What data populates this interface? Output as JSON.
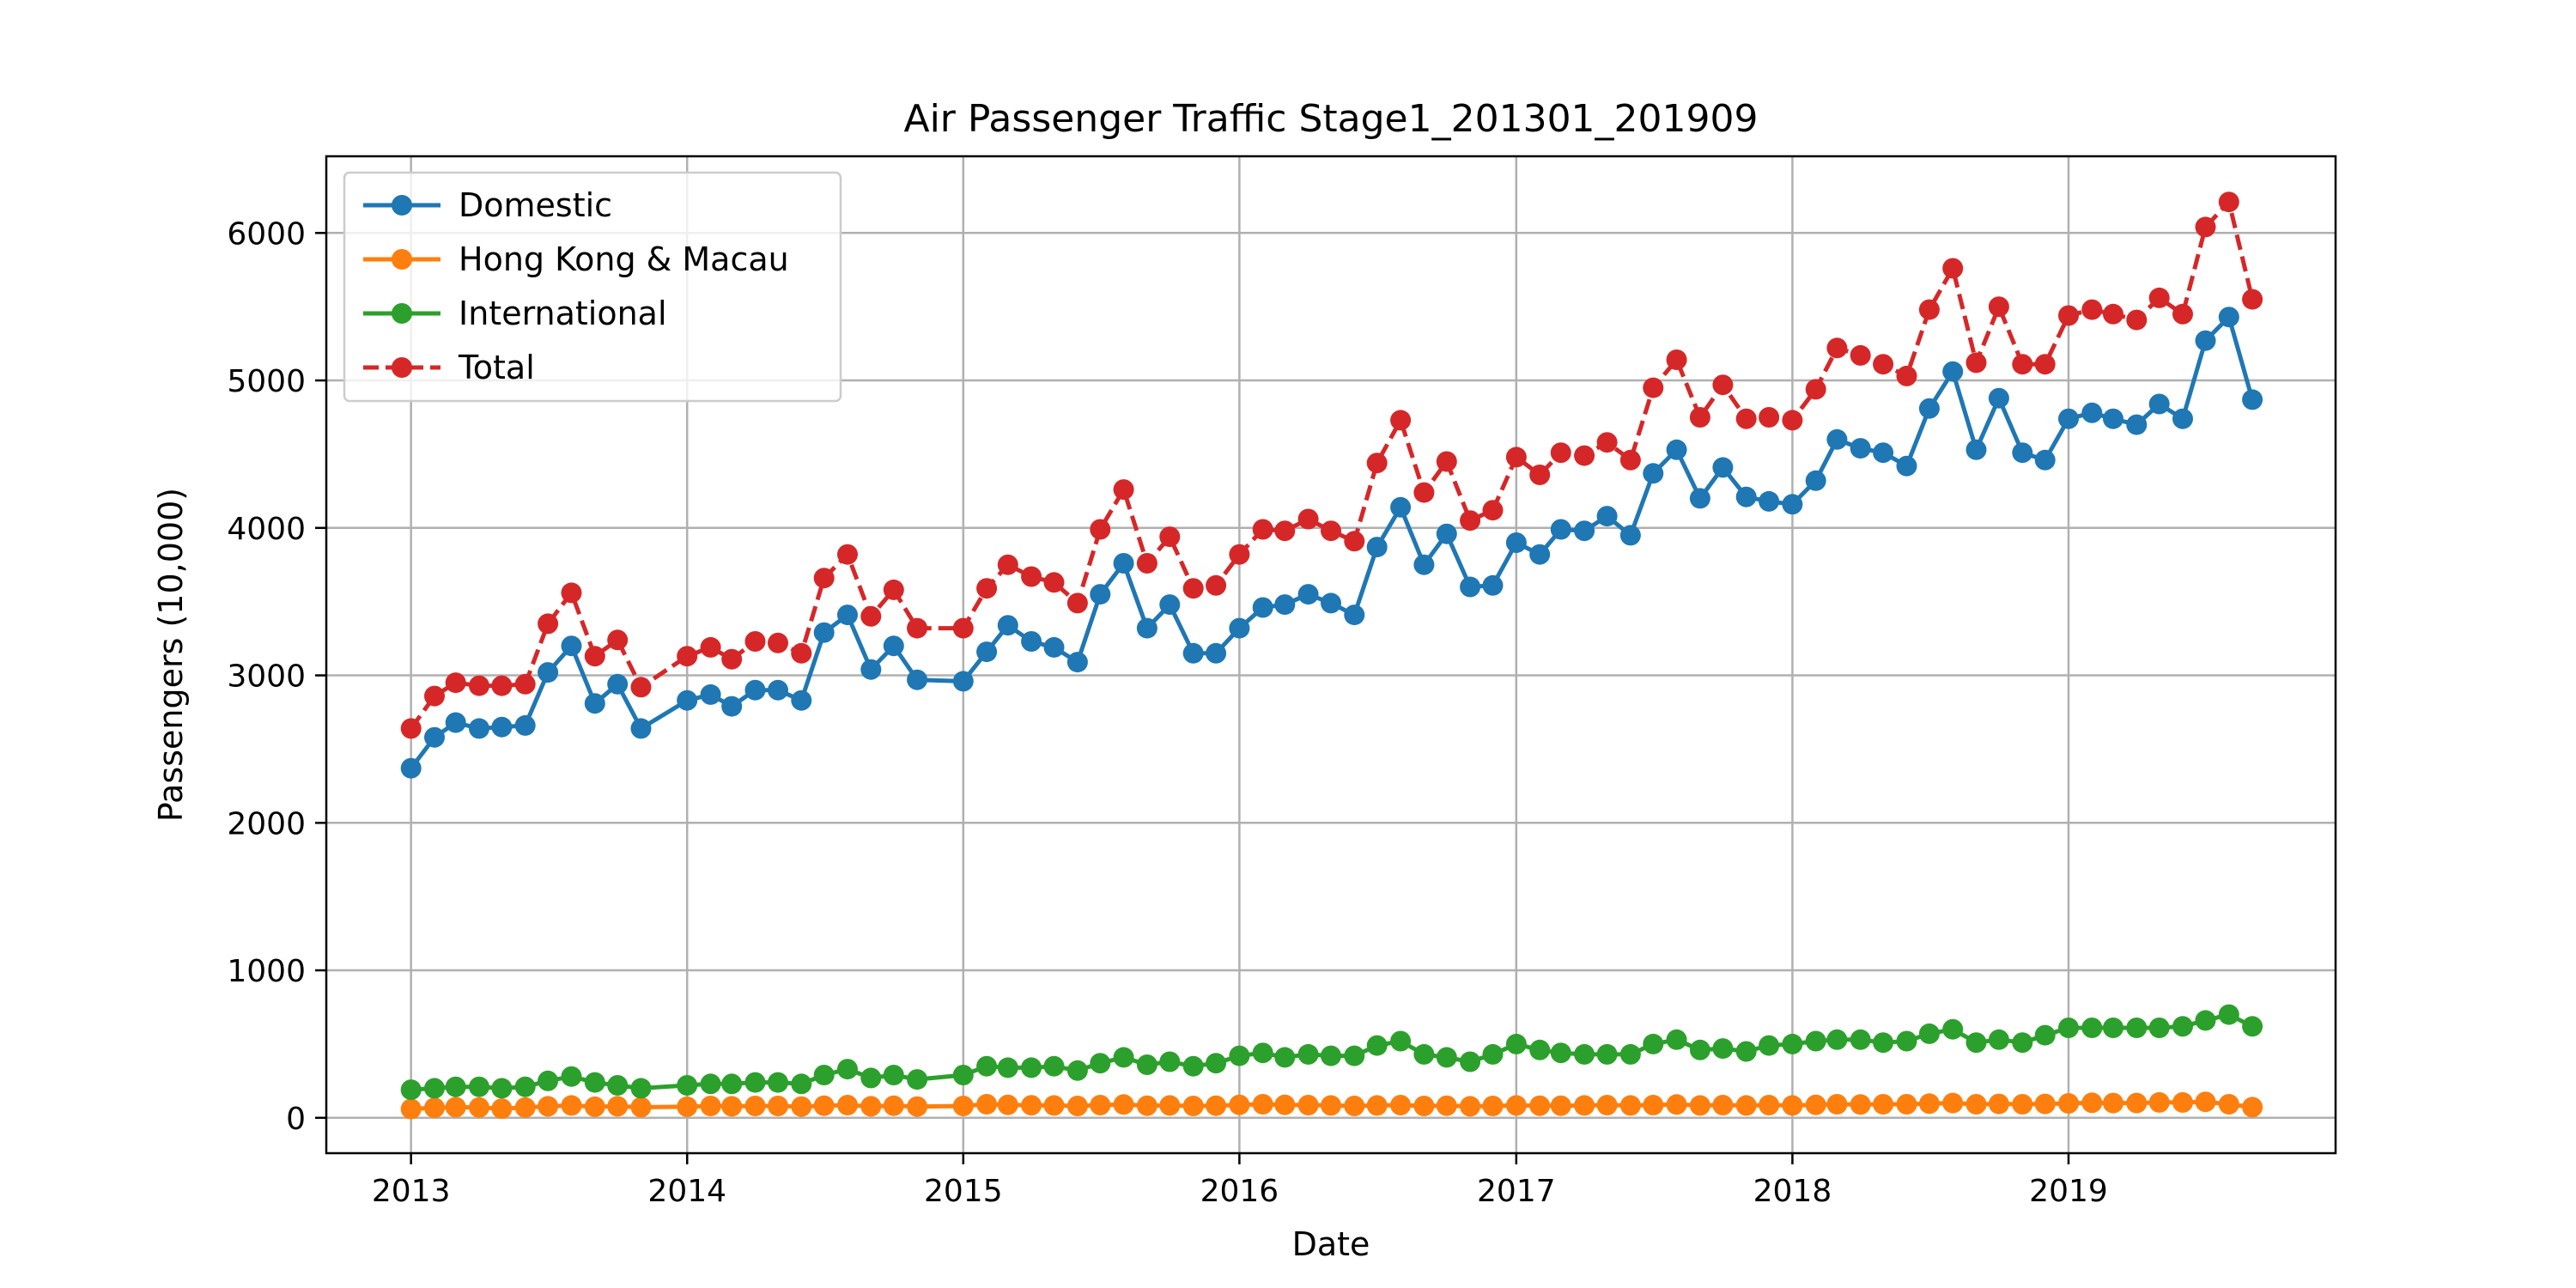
{
  "chart_data": {
    "type": "line",
    "title": "Air Passenger Traffic Stage1_201301_201909",
    "xlabel": "Date",
    "ylabel": "Passengers (10,000)",
    "ylim": [
      -240,
      6520
    ],
    "xlim": [
      "2012-09-11",
      "2019-12-20"
    ],
    "grid": true,
    "legend_position": "upper-left",
    "x_ticks": [
      "2013",
      "2014",
      "2015",
      "2016",
      "2017",
      "2018",
      "2019"
    ],
    "y_ticks": [
      0,
      1000,
      2000,
      3000,
      4000,
      5000,
      6000
    ],
    "x": [
      "2013-01",
      "2013-02",
      "2013-03",
      "2013-04",
      "2013-05",
      "2013-06",
      "2013-07",
      "2013-08",
      "2013-09",
      "2013-10",
      "2013-11",
      "2014-01",
      "2014-02",
      "2014-03",
      "2014-04",
      "2014-05",
      "2014-06",
      "2014-07",
      "2014-08",
      "2014-09",
      "2014-10",
      "2014-11",
      "2015-01",
      "2015-02",
      "2015-03",
      "2015-04",
      "2015-05",
      "2015-06",
      "2015-07",
      "2015-08",
      "2015-09",
      "2015-10",
      "2015-11",
      "2015-12",
      "2016-01",
      "2016-02",
      "2016-03",
      "2016-04",
      "2016-05",
      "2016-06",
      "2016-07",
      "2016-08",
      "2016-09",
      "2016-10",
      "2016-11",
      "2016-12",
      "2017-01",
      "2017-02",
      "2017-03",
      "2017-04",
      "2017-05",
      "2017-06",
      "2017-07",
      "2017-08",
      "2017-09",
      "2017-10",
      "2017-11",
      "2017-12",
      "2018-01",
      "2018-02",
      "2018-03",
      "2018-04",
      "2018-05",
      "2018-06",
      "2018-07",
      "2018-08",
      "2018-09",
      "2018-10",
      "2018-11",
      "2018-12",
      "2019-01",
      "2019-02",
      "2019-03",
      "2019-04",
      "2019-05",
      "2019-06",
      "2019-07",
      "2019-08",
      "2019-09"
    ],
    "series": [
      {
        "name": "Domestic",
        "color": "#1f77b4",
        "linestyle": "solid",
        "values": [
          2370,
          2580,
          2680,
          2640,
          2650,
          2660,
          3020,
          3200,
          2810,
          2940,
          2640,
          2830,
          2870,
          2790,
          2900,
          2900,
          2830,
          3290,
          3410,
          3040,
          3200,
          2970,
          2960,
          3160,
          3340,
          3230,
          3190,
          3090,
          3550,
          3760,
          3320,
          3480,
          3150,
          3150,
          3320,
          3460,
          3480,
          3550,
          3490,
          3410,
          3870,
          4140,
          3750,
          3960,
          3600,
          3610,
          3900,
          3820,
          3990,
          3980,
          4080,
          3950,
          4370,
          4530,
          4200,
          4410,
          4210,
          4180,
          4160,
          4320,
          4600,
          4540,
          4510,
          4420,
          4810,
          5060,
          4530,
          4880,
          4510,
          4460,
          4740,
          4780,
          4740,
          4700,
          4840,
          4740,
          5270,
          5430,
          4870
        ]
      },
      {
        "name": "Hong Kong & Macau",
        "color": "#ff7f0e",
        "linestyle": "solid",
        "values": [
          60,
          68,
          72,
          70,
          62,
          70,
          78,
          84,
          75,
          78,
          72,
          75,
          80,
          78,
          80,
          80,
          76,
          82,
          86,
          78,
          82,
          76,
          80,
          92,
          88,
          85,
          84,
          80,
          86,
          90,
          82,
          84,
          80,
          82,
          88,
          92,
          88,
          86,
          84,
          80,
          84,
          86,
          80,
          82,
          78,
          80,
          84,
          82,
          82,
          84,
          86,
          84,
          86,
          90,
          84,
          86,
          84,
          86,
          84,
          88,
          92,
          90,
          92,
          92,
          96,
          100,
          92,
          94,
          92,
          94,
          98,
          102,
          100,
          100,
          104,
          104,
          108,
          92,
          72
        ]
      },
      {
        "name": "International",
        "color": "#2ca02c",
        "linestyle": "solid",
        "values": [
          190,
          200,
          210,
          210,
          200,
          210,
          250,
          280,
          240,
          220,
          200,
          220,
          230,
          230,
          240,
          240,
          230,
          290,
          330,
          270,
          290,
          260,
          290,
          350,
          340,
          340,
          350,
          320,
          370,
          410,
          360,
          380,
          350,
          370,
          420,
          440,
          410,
          430,
          420,
          420,
          490,
          520,
          430,
          410,
          380,
          430,
          500,
          460,
          440,
          430,
          430,
          430,
          500,
          530,
          460,
          470,
          450,
          490,
          500,
          520,
          530,
          530,
          510,
          520,
          570,
          600,
          510,
          530,
          510,
          560,
          610,
          610,
          610,
          610,
          610,
          620,
          660,
          700,
          620
        ]
      },
      {
        "name": "Total",
        "color": "#d62728",
        "linestyle": "dashed",
        "values": [
          2640,
          2860,
          2950,
          2930,
          2930,
          2940,
          3350,
          3560,
          3130,
          3240,
          2920,
          3130,
          3190,
          3110,
          3230,
          3220,
          3150,
          3660,
          3820,
          3400,
          3580,
          3320,
          3320,
          3590,
          3750,
          3670,
          3630,
          3490,
          3990,
          4260,
          3760,
          3940,
          3590,
          3610,
          3820,
          3990,
          3980,
          4060,
          3980,
          3910,
          4440,
          4730,
          4240,
          4450,
          4050,
          4120,
          4480,
          4360,
          4510,
          4490,
          4580,
          4460,
          4950,
          5140,
          4750,
          4970,
          4740,
          4750,
          4730,
          4940,
          5220,
          5170,
          5110,
          5030,
          5480,
          5760,
          5120,
          5500,
          5110,
          5110,
          5440,
          5480,
          5450,
          5410,
          5560,
          5450,
          6040,
          6210,
          5550
        ]
      }
    ]
  }
}
